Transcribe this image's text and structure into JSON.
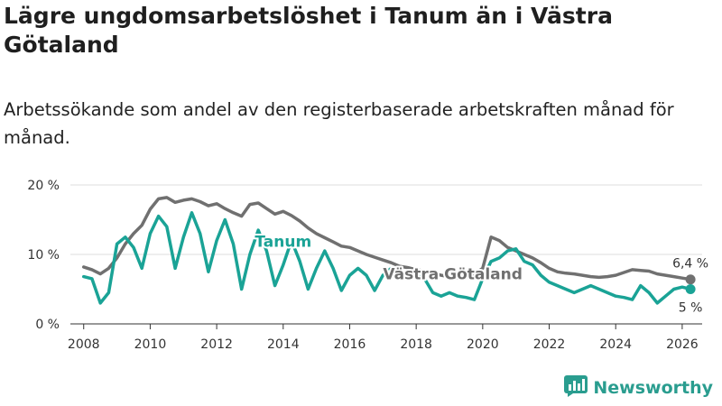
{
  "title": "Lägre ungdomsarbetslöshet i Tanum än i Västra Götaland",
  "subtitle": "Arbetssökande som andel av den registerbaserade arbetskraften månad för månad.",
  "brand": {
    "name": "Newsworthy",
    "icon": "newsworthy-logo-icon"
  },
  "colors": {
    "tanum": "#1aa396",
    "vastra_gotaland": "#707070",
    "grid": "#dddddd"
  },
  "chart_data": {
    "type": "line",
    "title": "Lägre ungdomsarbetslöshet i Tanum än i Västra Götaland",
    "xlabel": "",
    "ylabel": "",
    "xlim": [
      2007.6,
      2026.6
    ],
    "ylim": [
      0,
      20
    ],
    "grid": true,
    "x_ticks": [
      2008,
      2010,
      2012,
      2014,
      2016,
      2018,
      2020,
      2022,
      2024,
      2026
    ],
    "y_ticks": [
      {
        "value": 0,
        "label": "0 %"
      },
      {
        "value": 10,
        "label": "10 %"
      },
      {
        "value": 20,
        "label": "20 %"
      }
    ],
    "x": [
      2008.0,
      2008.25,
      2008.5,
      2008.75,
      2009.0,
      2009.25,
      2009.5,
      2009.75,
      2010.0,
      2010.25,
      2010.5,
      2010.75,
      2011.0,
      2011.25,
      2011.5,
      2011.75,
      2012.0,
      2012.25,
      2012.5,
      2012.75,
      2013.0,
      2013.25,
      2013.5,
      2013.75,
      2014.0,
      2014.25,
      2014.5,
      2014.75,
      2015.0,
      2015.25,
      2015.5,
      2015.75,
      2016.0,
      2016.25,
      2016.5,
      2016.75,
      2017.0,
      2017.25,
      2017.5,
      2017.75,
      2018.0,
      2018.25,
      2018.5,
      2018.75,
      2019.0,
      2019.25,
      2019.5,
      2019.75,
      2020.0,
      2020.25,
      2020.5,
      2020.75,
      2021.0,
      2021.25,
      2021.5,
      2021.75,
      2022.0,
      2022.25,
      2022.5,
      2022.75,
      2023.0,
      2023.25,
      2023.5,
      2023.75,
      2024.0,
      2024.25,
      2024.5,
      2024.75,
      2025.0,
      2025.25,
      2025.5,
      2025.75,
      2026.0,
      2026.25
    ],
    "series": [
      {
        "name": "Västra Götaland",
        "label": "Västra Götaland",
        "end_label": "6,4 %",
        "values": [
          8.2,
          7.8,
          7.2,
          8.0,
          9.5,
          11.5,
          13.0,
          14.2,
          16.5,
          18.0,
          18.2,
          17.5,
          17.8,
          18.0,
          17.6,
          17.0,
          17.3,
          16.6,
          16.0,
          15.5,
          17.2,
          17.4,
          16.6,
          15.8,
          16.2,
          15.6,
          14.8,
          13.8,
          13.0,
          12.4,
          11.8,
          11.2,
          11.0,
          10.5,
          10.0,
          9.6,
          9.2,
          8.8,
          8.3,
          8.1,
          7.8,
          7.6,
          7.3,
          7.0,
          6.8,
          6.6,
          6.7,
          7.2,
          8.0,
          12.5,
          12.0,
          11.0,
          10.5,
          10.0,
          9.5,
          8.8,
          8.0,
          7.5,
          7.3,
          7.2,
          7.0,
          6.8,
          6.7,
          6.8,
          7.0,
          7.4,
          7.8,
          7.7,
          7.6,
          7.2,
          7.0,
          6.8,
          6.6,
          6.4
        ]
      },
      {
        "name": "Tanum",
        "label": "Tanum",
        "end_label": "5 %",
        "values": [
          6.8,
          6.5,
          3.0,
          4.5,
          11.5,
          12.5,
          11.0,
          8.0,
          13.0,
          15.5,
          14.0,
          8.0,
          12.5,
          16.0,
          13.0,
          7.5,
          12.0,
          15.0,
          11.5,
          5.0,
          10.0,
          13.5,
          10.5,
          5.5,
          8.5,
          12.0,
          9.0,
          5.0,
          8.0,
          10.5,
          8.0,
          4.8,
          7.0,
          8.0,
          7.0,
          4.8,
          7.0,
          8.0,
          7.2,
          6.5,
          7.0,
          6.5,
          4.5,
          4.0,
          4.5,
          4.0,
          3.8,
          3.5,
          6.5,
          9.0,
          9.5,
          10.5,
          10.8,
          9.0,
          8.5,
          7.0,
          6.0,
          5.5,
          5.0,
          4.5,
          5.0,
          5.5,
          5.0,
          4.5,
          4.0,
          3.8,
          3.5,
          5.5,
          4.5,
          3.0,
          4.0,
          5.0,
          5.3,
          5.0
        ]
      }
    ]
  }
}
